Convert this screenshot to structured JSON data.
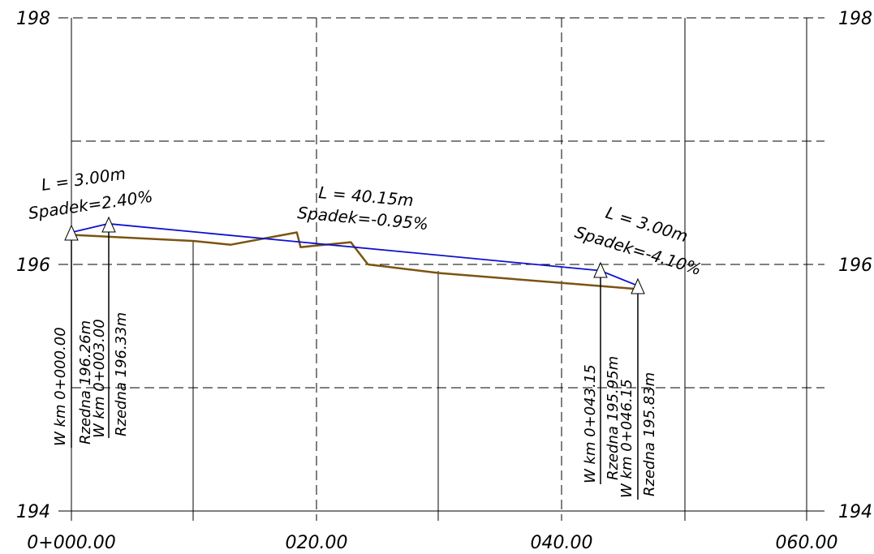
{
  "axes": {
    "y_ticks": [
      {
        "value": 198,
        "label": "198"
      },
      {
        "value": 196,
        "label": "196"
      },
      {
        "value": 194,
        "label": "194"
      }
    ],
    "x_ticks": [
      {
        "value": 0,
        "label": "0+000.00"
      },
      {
        "value": 20,
        "label": "020.00"
      },
      {
        "value": 40,
        "label": "040.00"
      },
      {
        "value": 60,
        "label": "060.00"
      }
    ]
  },
  "chart_data": {
    "type": "line",
    "xlim": [
      0,
      60
    ],
    "ylim": [
      194,
      198
    ],
    "series": [
      {
        "name": "",
        "color": "#1010d0",
        "points": [
          [
            0,
            196.26
          ],
          [
            3,
            196.33
          ],
          [
            43.15,
            195.95
          ],
          [
            46.15,
            195.83
          ]
        ]
      },
      {
        "name": "",
        "color": "#7a5410",
        "points": [
          [
            0,
            196.24
          ],
          [
            10,
            196.19
          ],
          [
            13,
            196.16
          ],
          [
            18.4,
            196.26
          ],
          [
            18.7,
            196.14
          ],
          [
            22.8,
            196.18
          ],
          [
            24.2,
            196.0
          ],
          [
            30,
            195.93
          ],
          [
            40,
            195.85
          ],
          [
            45,
            195.81
          ],
          [
            46.15,
            195.8
          ]
        ]
      }
    ]
  },
  "slopes": [
    {
      "length": "L = 3.00m",
      "slope": "Spadek=2.40%"
    },
    {
      "length": "L = 40.15m",
      "slope": "Spadek=-0.95%"
    },
    {
      "length": "L = 3.00m",
      "slope": "Spadek=-4.10%"
    }
  ],
  "stations": [
    {
      "km": "W  km  0+000.00",
      "rzedna": "Rzedna   196.26m"
    },
    {
      "km": "W  km  0+003.00",
      "rzedna": "Rzedna   196.33m"
    },
    {
      "km": "W  km  0+043.15",
      "rzedna": "Rzedna   195.95m"
    },
    {
      "km": "W  km  0+046.15",
      "rzedna": "Rzedna   195.83m"
    }
  ]
}
